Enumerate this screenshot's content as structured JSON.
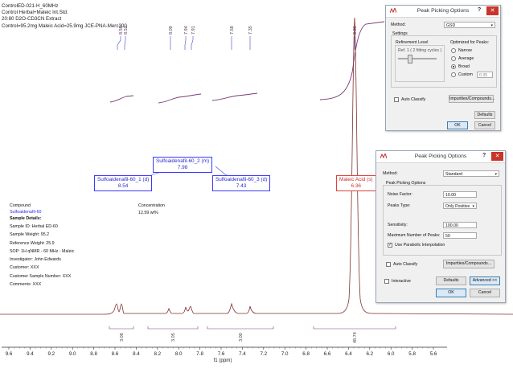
{
  "header": {
    "lines": [
      "ControlED-021-H_60MHz",
      "Control Herbal+Maleic Int.Std.",
      "20:80 D2O-CD3CN Extract",
      "Control=95.2mg Maleic Acid=25.9mg JCE-PNA-Merc300"
    ]
  },
  "peak_labels": [
    "8.56",
    "8.52",
    "8.09",
    "7.94",
    "7.91",
    "7.58",
    "7.35"
  ],
  "peak_label_maleic": "6.36",
  "assignments": [
    {
      "name": "Sulfoaidenafil-60_2 (m)",
      "shift": "7.98"
    },
    {
      "name": "Sulfoaidenafil-60_1 (d)",
      "shift": "8.54"
    },
    {
      "name": "Sulfoaidenafil-60_3 (d)",
      "shift": "7.43"
    },
    {
      "name": "Maleic Acid (s)",
      "shift": "6.36"
    }
  ],
  "integrals": [
    "3.08",
    "3.05",
    "3.00",
    "48.74"
  ],
  "axis": {
    "ticks": [
      "9.6",
      "9.4",
      "9.2",
      "9.0",
      "8.8",
      "8.6",
      "8.4",
      "8.2",
      "8.0",
      "7.8",
      "7.6",
      "7.4",
      "7.2",
      "7.0",
      "6.8",
      "6.6",
      "6.4",
      "6.2",
      "6.0",
      "5.8",
      "5.6"
    ],
    "xlabel": "f1 (ppm)"
  },
  "info": {
    "compound_label": "Compound",
    "compound_value": "Sulfoaidenafil-60",
    "details_title": "Sample Details:",
    "lines": [
      "Sample ID: Herbal ED-60",
      "Sample Weight: 95.2",
      "Reference Weight: 25.9",
      "SOP: 1H qNMR - 60 MHz - Maleic",
      "Investigator: John Edwards",
      "Customer: XXX",
      "Customer Sample Number: XXX",
      "Comments: XXX"
    ],
    "conc_label": "Concentration",
    "conc_value": "12.59 wt%"
  },
  "dialog_small": {
    "title": "Peak Picking Options",
    "help": "?",
    "close": "✕",
    "method_label": "Method:",
    "method_value": "GSD",
    "settings_label": "Settings",
    "refinement_label": "Refinement Level",
    "ref_text": "Ref. 1 ( 2 fitting cycles )",
    "optimized_label": "Optimized for Peaks:",
    "radios": [
      "Narrow",
      "Average",
      "Broad",
      "Custom"
    ],
    "selected_radio": "Broad",
    "custom_value": "0.35",
    "auto_classify": "Auto Classify",
    "impurities": "Impurities/Compounds...",
    "defaults": "Defaults",
    "ok": "OK",
    "cancel": "Cancel"
  },
  "dialog_large": {
    "title": "Peak Picking Options",
    "help": "?",
    "close": "✕",
    "method_label": "Method:",
    "method_value": "Standard",
    "group_label": "Peak Picking Options",
    "noise_label": "Noise Factor:",
    "noise_value": "10.00",
    "peaks_type_label": "Peaks Type:",
    "peaks_type_value": "Only Positive",
    "sensitivity_label": "Sensitivity:",
    "sensitivity_value": "100.00",
    "max_peaks_label": "Maximum Number of Peaks:",
    "max_peaks_value": "50",
    "parabolic_label": "Use Parabolic Interpolation",
    "auto_classify": "Auto Classify",
    "impurities": "Impurities/Compounds...",
    "interactive": "Interactive",
    "defaults": "Defaults",
    "advanced": "Advanced <<",
    "ok": "OK",
    "cancel": "Cancel"
  }
}
